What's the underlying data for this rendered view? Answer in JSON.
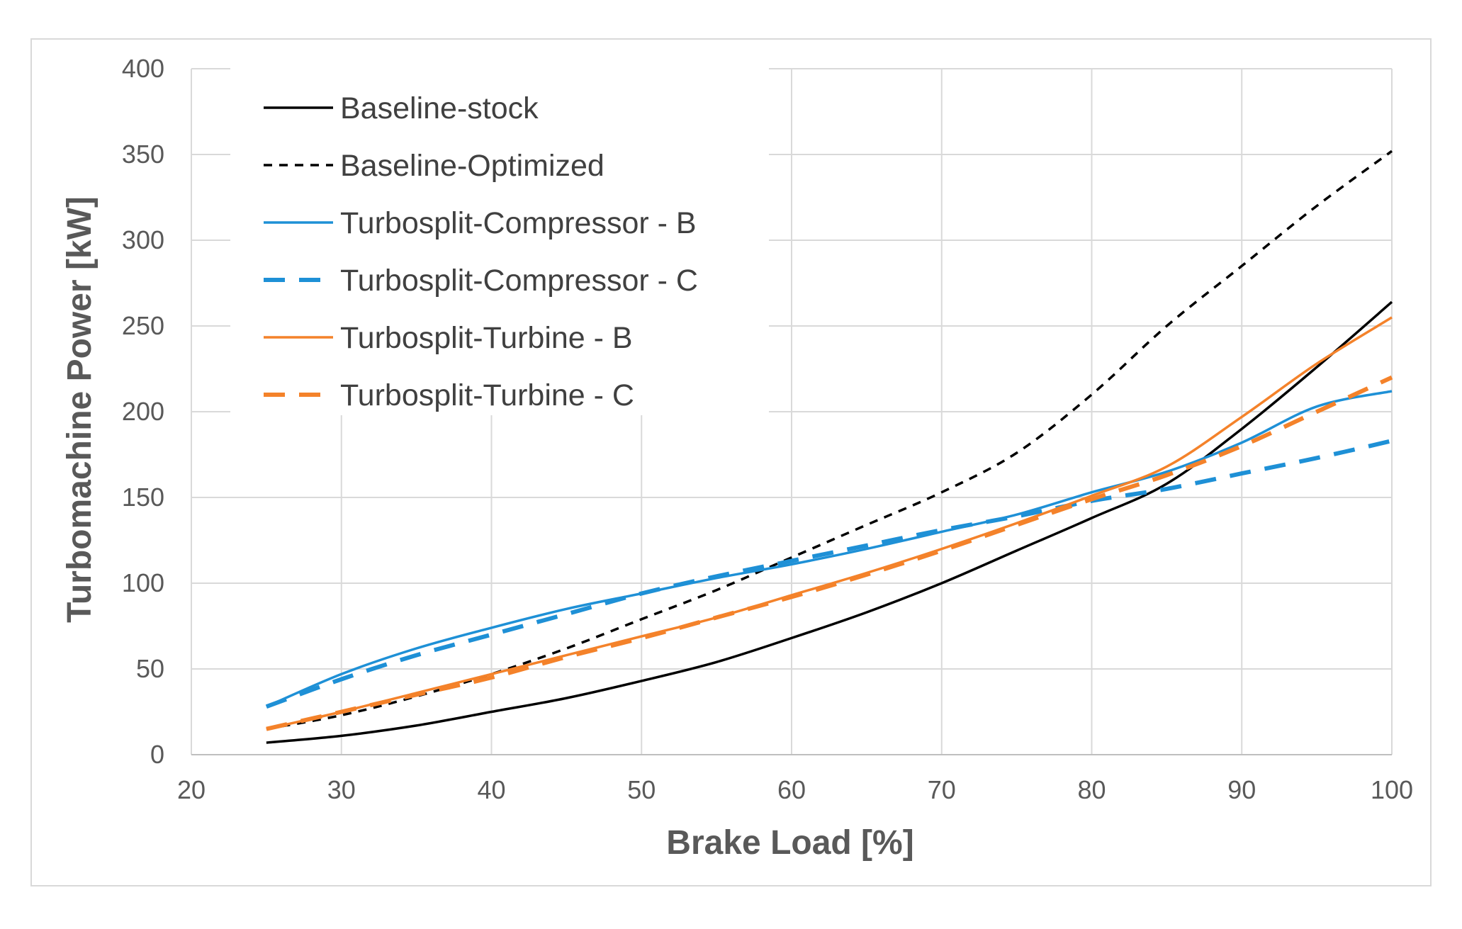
{
  "chart_data": {
    "type": "line",
    "title": "",
    "xlabel": "Brake Load [%]",
    "ylabel": "Turbomachine Power [kW]",
    "xlim": [
      20,
      100
    ],
    "ylim": [
      0,
      400
    ],
    "xticks": [
      20,
      30,
      40,
      50,
      60,
      70,
      80,
      90,
      100
    ],
    "yticks": [
      0,
      50,
      100,
      150,
      200,
      250,
      300,
      350,
      400
    ],
    "grid": true,
    "legend_position": "top-left",
    "series": [
      {
        "name": "Baseline-stock",
        "color": "#000000",
        "dash": "solid",
        "width": "thin",
        "x": [
          25,
          30,
          35,
          40,
          45,
          50,
          55,
          60,
          65,
          70,
          75,
          80,
          85,
          90,
          95,
          100
        ],
        "y": [
          7,
          11,
          17,
          25,
          33,
          43,
          54,
          68,
          83,
          100,
          119,
          138,
          158,
          190,
          226,
          264
        ]
      },
      {
        "name": "Baseline-Optimized",
        "color": "#000000",
        "dash": "short",
        "width": "thin",
        "x": [
          25,
          30,
          35,
          40,
          45,
          50,
          55,
          60,
          65,
          70,
          75,
          80,
          85,
          90,
          95,
          100
        ],
        "y": [
          15,
          23,
          34,
          47,
          62,
          79,
          96,
          115,
          134,
          153,
          176,
          210,
          250,
          285,
          320,
          352
        ]
      },
      {
        "name": "Turbosplit-Compressor - B",
        "color": "#1E90D6",
        "dash": "solid",
        "width": "thin",
        "x": [
          25,
          30,
          35,
          40,
          45,
          50,
          55,
          60,
          65,
          70,
          75,
          80,
          85,
          90,
          95,
          100
        ],
        "y": [
          28,
          47,
          62,
          74,
          85,
          94,
          103,
          111,
          120,
          130,
          140,
          153,
          165,
          182,
          203,
          212
        ]
      },
      {
        "name": "Turbosplit-Compressor - C",
        "color": "#1E90D6",
        "dash": "long",
        "width": "thick",
        "x": [
          25,
          30,
          35,
          40,
          45,
          50,
          55,
          60,
          65,
          70,
          75,
          80,
          85,
          90,
          95,
          100
        ],
        "y": [
          28,
          44,
          58,
          70,
          82,
          94,
          104,
          113,
          122,
          131,
          139,
          148,
          155,
          164,
          173,
          183
        ]
      },
      {
        "name": "Turbosplit-Turbine - B",
        "color": "#F4822A",
        "dash": "solid",
        "width": "thin",
        "x": [
          25,
          30,
          35,
          40,
          45,
          50,
          55,
          60,
          65,
          70,
          75,
          80,
          85,
          90,
          95,
          100
        ],
        "y": [
          15,
          25,
          36,
          47,
          58,
          69,
          80,
          93,
          106,
          120,
          135,
          151,
          168,
          197,
          228,
          255
        ]
      },
      {
        "name": "Turbosplit-Turbine - C",
        "color": "#F4822A",
        "dash": "long",
        "width": "thick",
        "x": [
          25,
          30,
          35,
          40,
          45,
          50,
          55,
          60,
          65,
          70,
          75,
          80,
          85,
          90,
          95,
          100
        ],
        "y": [
          15,
          25,
          35,
          45,
          57,
          68,
          80,
          92,
          105,
          119,
          134,
          149,
          163,
          180,
          200,
          220
        ]
      }
    ]
  }
}
